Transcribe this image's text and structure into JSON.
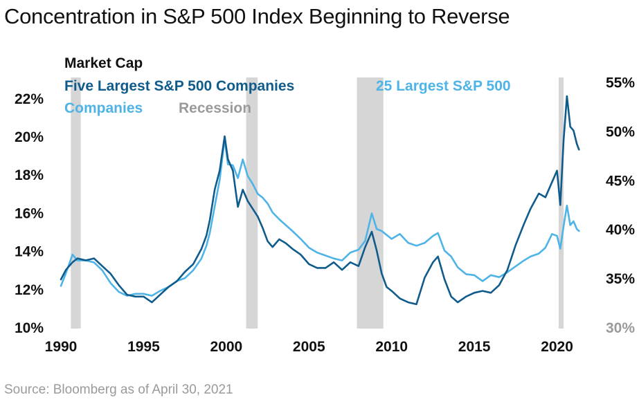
{
  "chart_data": {
    "type": "line",
    "title": "Concentration in S&P 500 Index Beginning to Reverse",
    "source": "Source: Bloomberg as of April 30, 2021",
    "legend": {
      "title": "Market Cap",
      "entries": [
        "Five Largest S&P 500 Companies",
        "25 Largest S&P 500 Companies",
        "Recession"
      ],
      "placement": "top-left"
    },
    "x_ticks": [
      "1990",
      "1995",
      "2000",
      "2005",
      "2010",
      "2015",
      "2020"
    ],
    "xlim": [
      1990,
      2021.4
    ],
    "y_left": {
      "ylim": [
        10,
        22.5
      ],
      "ticks": [
        10,
        12,
        14,
        16,
        18,
        20,
        22
      ],
      "tick_labels": [
        "10%",
        "12%",
        "14%",
        "16%",
        "18%",
        "20%",
        "22%"
      ]
    },
    "y_right": {
      "ylim": [
        30,
        55
      ],
      "ticks": [
        30,
        35,
        40,
        45,
        50,
        55
      ],
      "tick_labels": [
        "30%",
        "35%",
        "40%",
        "45%",
        "50%",
        "55%"
      ]
    },
    "recessions": [
      [
        1990.6,
        1991.2
      ],
      [
        2001.2,
        2001.9
      ],
      [
        2007.9,
        2009.5
      ],
      [
        2020.1,
        2020.4
      ]
    ],
    "series": [
      {
        "name": "Five Largest S&P 500 Companies",
        "axis": "left",
        "color": "#0f5b8c",
        "x": [
          1990.0,
          1990.3,
          1990.7,
          1991.0,
          1991.5,
          1992.0,
          1992.5,
          1993.0,
          1993.5,
          1994.0,
          1994.5,
          1995.0,
          1995.5,
          1996.0,
          1996.5,
          1997.0,
          1997.5,
          1998.0,
          1998.5,
          1998.8,
          1999.0,
          1999.3,
          1999.6,
          1999.9,
          2000.1,
          2000.4,
          2000.7,
          2001.0,
          2001.3,
          2001.6,
          2001.9,
          2002.2,
          2002.5,
          2002.8,
          2003.2,
          2003.6,
          2004.0,
          2004.5,
          2005.0,
          2005.5,
          2006.0,
          2006.5,
          2007.0,
          2007.5,
          2008.0,
          2008.4,
          2008.8,
          2009.1,
          2009.4,
          2009.7,
          2010.0,
          2010.5,
          2011.0,
          2011.5,
          2012.0,
          2012.5,
          2012.8,
          2013.2,
          2013.6,
          2014.0,
          2014.5,
          2015.0,
          2015.5,
          2016.0,
          2016.5,
          2017.0,
          2017.5,
          2018.0,
          2018.4,
          2018.9,
          2019.3,
          2019.7,
          2020.0,
          2020.2,
          2020.4,
          2020.6,
          2020.8,
          2021.0,
          2021.2,
          2021.33
        ],
        "values": [
          12.5,
          13.0,
          13.4,
          13.6,
          13.5,
          13.6,
          13.2,
          12.8,
          12.2,
          11.7,
          11.6,
          11.6,
          11.3,
          11.7,
          12.1,
          12.4,
          12.9,
          13.3,
          14.1,
          14.8,
          15.6,
          17.2,
          18.2,
          20.0,
          18.8,
          18.2,
          16.3,
          17.2,
          16.6,
          16.2,
          15.8,
          15.2,
          14.5,
          14.2,
          14.6,
          14.4,
          14.1,
          13.8,
          13.3,
          13.1,
          13.1,
          13.4,
          13.0,
          13.4,
          13.2,
          14.2,
          15.0,
          14.0,
          12.8,
          12.1,
          11.9,
          11.5,
          11.3,
          11.2,
          12.6,
          13.4,
          13.7,
          12.5,
          11.6,
          11.3,
          11.6,
          11.8,
          11.9,
          11.8,
          12.2,
          13.0,
          14.3,
          15.4,
          16.2,
          17.0,
          16.8,
          17.6,
          18.2,
          16.4,
          19.8,
          22.1,
          20.5,
          20.3,
          19.6,
          19.3
        ]
      },
      {
        "name": "25 Largest S&P 500 Companies",
        "axis": "right",
        "color": "#4eb3e6",
        "x": [
          1990.0,
          1990.3,
          1990.7,
          1991.0,
          1991.5,
          1992.0,
          1992.5,
          1993.0,
          1993.5,
          1994.0,
          1994.5,
          1995.0,
          1995.5,
          1996.0,
          1996.5,
          1997.0,
          1997.5,
          1998.0,
          1998.5,
          1998.8,
          1999.0,
          1999.3,
          1999.6,
          1999.9,
          2000.1,
          2000.4,
          2000.7,
          2001.0,
          2001.3,
          2001.6,
          2001.9,
          2002.2,
          2002.5,
          2002.8,
          2003.2,
          2003.6,
          2004.0,
          2004.5,
          2005.0,
          2005.5,
          2006.0,
          2006.5,
          2007.0,
          2007.5,
          2008.0,
          2008.4,
          2008.8,
          2009.1,
          2009.4,
          2009.7,
          2010.0,
          2010.5,
          2011.0,
          2011.5,
          2012.0,
          2012.5,
          2012.8,
          2013.2,
          2013.6,
          2014.0,
          2014.5,
          2015.0,
          2015.5,
          2016.0,
          2016.5,
          2017.0,
          2017.5,
          2018.0,
          2018.4,
          2018.9,
          2019.3,
          2019.7,
          2020.0,
          2020.2,
          2020.4,
          2020.6,
          2020.8,
          2021.0,
          2021.2,
          2021.33
        ],
        "values": [
          34.2,
          35.5,
          37.4,
          36.8,
          36.8,
          36.6,
          35.8,
          34.5,
          33.6,
          33.2,
          33.4,
          33.4,
          33.2,
          33.7,
          34.1,
          34.7,
          35.0,
          35.8,
          37.0,
          38.3,
          39.6,
          42.3,
          45.0,
          49.2,
          46.6,
          46.5,
          45.2,
          47.1,
          45.4,
          44.6,
          43.6,
          43.2,
          42.6,
          41.7,
          41.0,
          40.4,
          39.8,
          39.0,
          38.1,
          37.6,
          37.3,
          37.0,
          36.8,
          37.6,
          37.9,
          38.8,
          41.6,
          40.0,
          39.8,
          39.4,
          39.0,
          39.5,
          38.6,
          38.3,
          38.6,
          39.3,
          39.6,
          37.8,
          37.2,
          36.1,
          35.4,
          35.3,
          34.7,
          35.3,
          35.1,
          35.6,
          36.2,
          36.8,
          37.2,
          37.5,
          38.1,
          39.5,
          39.3,
          38.0,
          40.3,
          42.4,
          40.4,
          40.8,
          40.0,
          39.8
        ]
      }
    ]
  }
}
